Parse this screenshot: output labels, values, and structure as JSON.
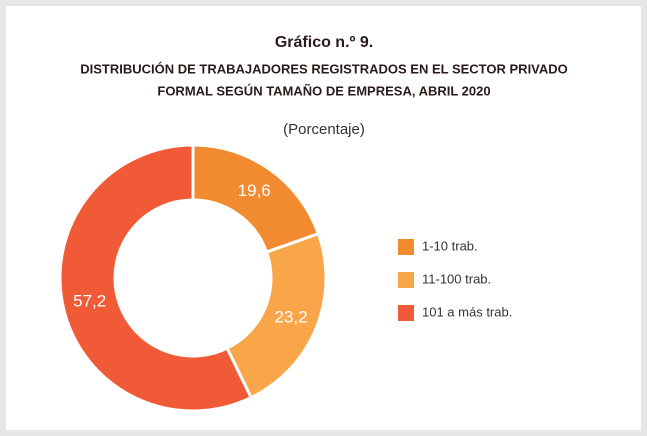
{
  "chart_data": {
    "type": "donut",
    "title": "Gráfico n.º 9.",
    "subtitle": [
      "DISTRIBUCIÓN DE TRABAJADORES REGISTRADOS EN EL SECTOR PRIVADO",
      "FORMAL SEGÚN TAMAÑO DE EMPRESA, ABRIL 2020"
    ],
    "unit_label": "(Porcentaje)",
    "categories": [
      "1-10 trab.",
      "11-100 trab.",
      "101 a más trab."
    ],
    "values": [
      19.6,
      23.2,
      57.2
    ],
    "value_labels": [
      "19,6",
      "23,2",
      "57,2"
    ],
    "colors": [
      "#f28b30",
      "#f9a64b",
      "#f05a36"
    ],
    "legend": "right"
  }
}
